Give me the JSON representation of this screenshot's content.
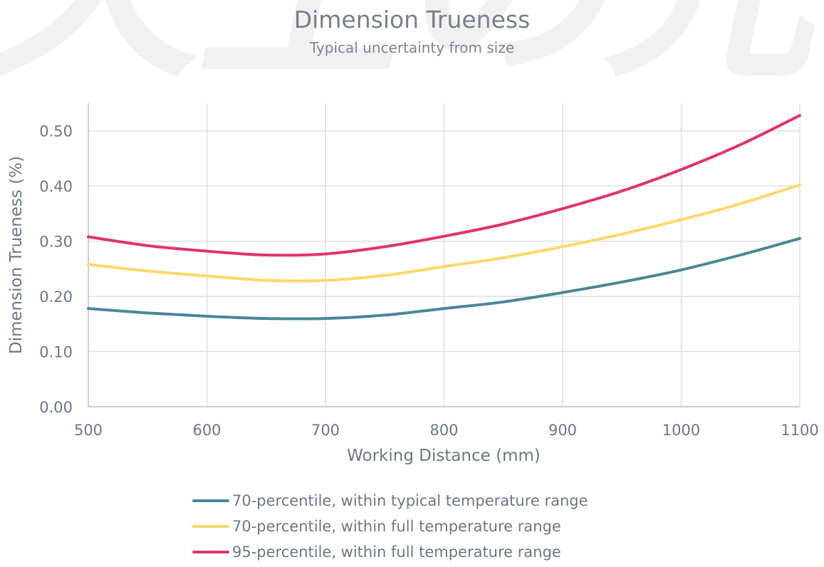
{
  "watermark": {
    "text": "天空の光"
  },
  "chart_data": {
    "type": "line",
    "title": "Dimension Trueness",
    "subtitle": "Typical uncertainty from size",
    "xlabel": "Working Distance (mm)",
    "ylabel": "Dimension Trueness (%)",
    "xlim": [
      500,
      1100
    ],
    "ylim": [
      0,
      0.55
    ],
    "x_ticks": [
      500,
      600,
      700,
      800,
      900,
      1000,
      1100
    ],
    "x_tick_labels": [
      "500",
      "600",
      "700",
      "800",
      "900",
      "1000",
      "1100"
    ],
    "y_ticks": [
      0,
      0.1,
      0.2,
      0.3,
      0.4,
      0.5
    ],
    "y_tick_labels": [
      "0.00",
      "0.10",
      "0.20",
      "0.30",
      "0.40",
      "0.50"
    ],
    "grid": true,
    "legend_position": "bottom",
    "x": [
      500,
      550,
      600,
      650,
      700,
      750,
      800,
      850,
      900,
      950,
      1000,
      1050,
      1100
    ],
    "series": [
      {
        "name": "70-percentile, within typical temperature range",
        "color": "#4a8797",
        "values": [
          0.178,
          0.17,
          0.164,
          0.16,
          0.16,
          0.166,
          0.178,
          0.19,
          0.207,
          0.226,
          0.248,
          0.275,
          0.305
        ]
      },
      {
        "name": "70-percentile, within full temperature range",
        "color": "#fcd869",
        "values": [
          0.258,
          0.246,
          0.237,
          0.229,
          0.229,
          0.238,
          0.254,
          0.27,
          0.29,
          0.313,
          0.339,
          0.368,
          0.402
        ]
      },
      {
        "name": "95-percentile, within full temperature range",
        "color": "#e0336e",
        "values": [
          0.308,
          0.292,
          0.282,
          0.275,
          0.277,
          0.29,
          0.309,
          0.331,
          0.359,
          0.391,
          0.43,
          0.475,
          0.528
        ]
      }
    ]
  }
}
